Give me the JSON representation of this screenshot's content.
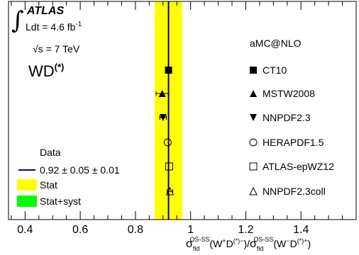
{
  "chart_data": {
    "type": "scatter",
    "title": "",
    "xlabel": "",
    "xlim": [
      0.34,
      1.6
    ],
    "xticks": [
      "0.4",
      "0.6",
      "0.8",
      "1",
      "1.2",
      "1.4"
    ],
    "xaxis_label": {
      "sigma": "σ",
      "sub": "fid",
      "sup": "OS-SS",
      "num": "(W",
      "num_sup1": "+",
      "num_D": "D",
      "num_sup2": "(*)−",
      "slash": ")/",
      "den": "(W",
      "den_sup1": "−",
      "den_D": "D",
      "den_sup2": "(*)+",
      "close": ")"
    },
    "ylabel": "",
    "grid": false,
    "legend_position": "right",
    "experiment": "ATLAS",
    "lumi_prefix": "Ldt = 4.6 fb",
    "lumi_exp": "-1",
    "energy": "√s = 7 TeV",
    "integral_sign": "∫",
    "process": "WD",
    "process_sup": "(*)",
    "generator": "aMC@NLO",
    "data_label": "Data",
    "measurement": {
      "value": 0.92,
      "label": "0.92 ± 0.05 ± 0.01",
      "stat_band": [
        0.87,
        0.97
      ],
      "syst_band": [
        0.87,
        0.97
      ]
    },
    "band_labels": {
      "stat": "Stat",
      "syst": "Stat+syst"
    },
    "predictions": [
      {
        "name": "CT10",
        "marker": "filled-square",
        "value": 0.92,
        "err": 0.0
      },
      {
        "name": "MSTW2008",
        "marker": "filled-triangle-up",
        "value": 0.897,
        "err": 0.022
      },
      {
        "name": "NNPDF2.3",
        "marker": "filled-triangle-down",
        "value": 0.9,
        "err": 0.012
      },
      {
        "name": "HERAPDF1.5",
        "marker": "open-circle",
        "value": 0.917,
        "err": 0.0
      },
      {
        "name": "ATLAS-epWZ12",
        "marker": "open-square",
        "value": 0.922,
        "err": 0.0
      },
      {
        "name": "NNPDF2.3coll",
        "marker": "open-triangle-up",
        "value": 0.925,
        "err": 0.01
      }
    ],
    "colors": {
      "stat": "#ffff00",
      "syst": "#00ff00",
      "line": "#000099",
      "marker": "#000000"
    }
  }
}
